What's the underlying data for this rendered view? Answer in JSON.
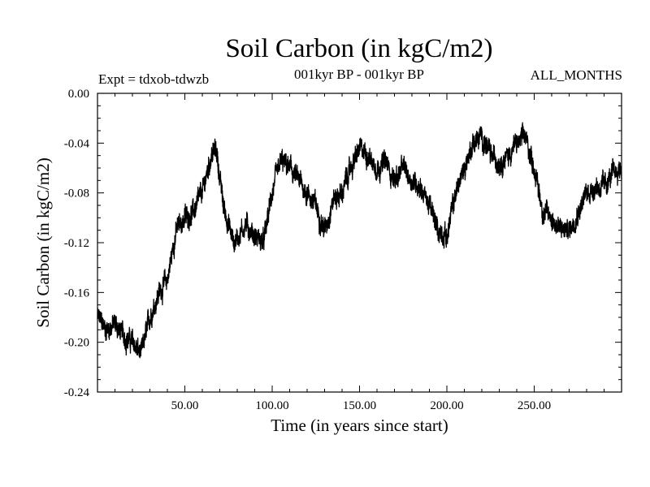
{
  "header": {
    "title": "Soil Carbon (in kgC/m2)",
    "experiment": "Expt = tdxob-tdwzb",
    "period": "001kyr BP - 001kyr BP",
    "months": "ALL_MONTHS"
  },
  "chart_data": {
    "type": "line",
    "title": "Soil Carbon (in kgC/m2)",
    "xlabel": "Time (in years since start)",
    "ylabel": "Soil Carbon (in kgC/m2)",
    "xlim": [
      0,
      300
    ],
    "ylim": [
      -0.24,
      0.0
    ],
    "x_ticks": [
      50,
      100,
      150,
      200,
      250
    ],
    "x_tick_labels": [
      "50.00",
      "100.00",
      "150.00",
      "200.00",
      "250.00"
    ],
    "y_ticks": [
      0.0,
      -0.04,
      -0.08,
      -0.12,
      -0.16,
      -0.2,
      -0.24
    ],
    "y_tick_labels": [
      "0.00",
      "-0.04",
      "-0.08",
      "-0.12",
      "-0.16",
      "-0.20",
      "-0.24"
    ],
    "grid": false,
    "series": [
      {
        "name": "Soil Carbon",
        "color": "#000000",
        "x": [
          0,
          5,
          10,
          15,
          20,
          25,
          30,
          35,
          40,
          45,
          50,
          55,
          60,
          65,
          68,
          72,
          78,
          85,
          90,
          95,
          100,
          105,
          110,
          115,
          120,
          125,
          130,
          135,
          140,
          145,
          150,
          155,
          160,
          165,
          170,
          175,
          180,
          185,
          190,
          195,
          200,
          205,
          210,
          215,
          220,
          225,
          230,
          235,
          240,
          245,
          250,
          255,
          260,
          265,
          270,
          275,
          280,
          285,
          290,
          295,
          300
        ],
        "y": [
          -0.18,
          -0.19,
          -0.185,
          -0.195,
          -0.2,
          -0.21,
          -0.18,
          -0.16,
          -0.15,
          -0.11,
          -0.1,
          -0.095,
          -0.08,
          -0.05,
          -0.045,
          -0.09,
          -0.12,
          -0.105,
          -0.115,
          -0.12,
          -0.08,
          -0.055,
          -0.06,
          -0.07,
          -0.08,
          -0.09,
          -0.11,
          -0.085,
          -0.08,
          -0.06,
          -0.045,
          -0.05,
          -0.06,
          -0.055,
          -0.07,
          -0.06,
          -0.07,
          -0.075,
          -0.09,
          -0.11,
          -0.115,
          -0.08,
          -0.06,
          -0.04,
          -0.035,
          -0.05,
          -0.055,
          -0.05,
          -0.04,
          -0.035,
          -0.06,
          -0.095,
          -0.1,
          -0.11,
          -0.11,
          -0.095,
          -0.08,
          -0.075,
          -0.075,
          -0.065,
          -0.06
        ]
      }
    ]
  }
}
